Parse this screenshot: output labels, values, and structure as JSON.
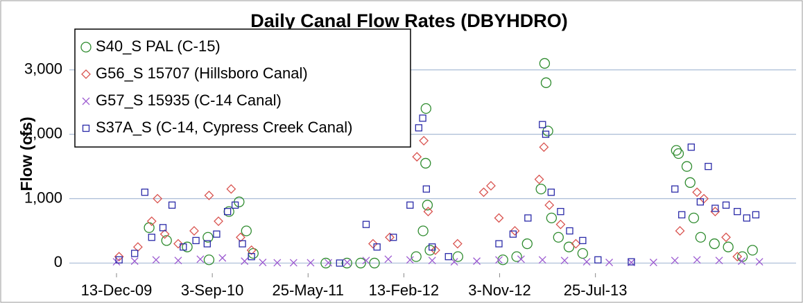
{
  "chart_data": {
    "type": "scatter",
    "title": "Daily Canal Flow Rates (DBYHDRO)",
    "y_label": "Flow (cfs)",
    "xlim": [
      "2009-08-05",
      "2015-01-29"
    ],
    "xticks": [
      {
        "value": "2009-12-13",
        "label": "13-Dec-09"
      },
      {
        "value": "2010-09-03",
        "label": "3-Sep-10"
      },
      {
        "value": "2011-05-25",
        "label": "25-May-11"
      },
      {
        "value": "2012-02-13",
        "label": "13-Feb-12"
      },
      {
        "value": "2012-11-03",
        "label": "3-Nov-12"
      },
      {
        "value": "2013-07-25",
        "label": "25-Jul-13"
      }
    ],
    "ylim": [
      -200,
      3600
    ],
    "yticks": [
      0,
      {
        "value": 1000,
        "label": "1,000"
      },
      {
        "value": 2000,
        "label": "2,000"
      },
      {
        "value": 3000,
        "label": "3,000"
      }
    ],
    "grid": true,
    "legend": "upper left",
    "series": [
      {
        "name": "S40_S PAL (C-15)",
        "color": "#2e8b2e",
        "marker": "circle",
        "x": [
          "2010-03-13",
          "2010-04-30",
          "2010-06-26",
          "2010-08-22",
          "2010-08-25",
          "2010-10-19",
          "2010-11-16",
          "2010-12-06",
          "2010-12-25",
          "2011-07-13",
          "2011-09-09",
          "2011-10-17",
          "2011-11-24",
          "2012-03-18",
          "2012-04-06",
          "2012-04-13",
          "2012-04-14",
          "2012-04-18",
          "2012-04-25",
          "2012-07-11",
          "2012-11-12",
          "2012-12-20",
          "2013-01-18",
          "2013-02-25",
          "2013-03-07",
          "2013-03-11",
          "2013-03-16",
          "2013-03-26",
          "2013-04-14",
          "2013-05-13",
          "2013-06-20",
          "2014-03-05",
          "2014-03-11",
          "2014-04-03",
          "2014-04-12",
          "2014-04-22",
          "2014-05-11",
          "2014-06-18",
          "2014-07-26",
          "2014-09-03",
          "2014-10-01"
        ],
        "values": [
          550,
          350,
          250,
          400,
          50,
          800,
          950,
          500,
          150,
          0,
          0,
          0,
          0,
          100,
          500,
          1550,
          2400,
          900,
          200,
          100,
          50,
          100,
          300,
          1150,
          3100,
          2800,
          2050,
          700,
          400,
          250,
          150,
          1750,
          1700,
          1500,
          1250,
          700,
          400,
          300,
          250,
          100,
          200
        ]
      },
      {
        "name": "G56_S 15707 (Hillsboro Canal)",
        "color": "#d9534f",
        "marker": "diamond",
        "x": [
          "2009-12-20",
          "2010-02-10",
          "2010-03-20",
          "2010-04-05",
          "2010-04-25",
          "2010-06-01",
          "2010-07-15",
          "2010-08-25",
          "2010-09-20",
          "2010-10-25",
          "2010-11-20",
          "2010-12-20",
          "2011-11-20",
          "2012-01-05",
          "2012-03-20",
          "2012-04-08",
          "2012-04-20",
          "2012-05-10",
          "2012-07-10",
          "2012-09-20",
          "2012-10-10",
          "2012-11-01",
          "2012-12-15",
          "2013-02-20",
          "2013-03-05",
          "2013-03-20",
          "2013-04-20",
          "2013-06-01",
          "2014-03-15",
          "2014-05-01",
          "2014-05-20",
          "2014-06-20",
          "2014-07-20",
          "2014-08-20"
        ],
        "values": [
          100,
          250,
          650,
          1000,
          450,
          300,
          500,
          1050,
          650,
          1150,
          400,
          200,
          300,
          400,
          1650,
          1900,
          800,
          200,
          300,
          1100,
          1200,
          700,
          500,
          1300,
          1800,
          900,
          600,
          300,
          500,
          1100,
          1000,
          800,
          400,
          100
        ]
      },
      {
        "name": "G57_S 15935 (C-14 Canal)",
        "color": "#9b59d0",
        "marker": "x",
        "x": [
          "2009-12-13",
          "2010-02-01",
          "2010-04-01",
          "2010-06-01",
          "2010-08-01",
          "2010-10-01",
          "2010-12-01",
          "2011-01-20",
          "2011-03-01",
          "2011-04-15",
          "2011-06-01",
          "2011-07-20",
          "2011-09-10",
          "2011-11-01",
          "2012-01-01",
          "2012-03-01",
          "2012-05-01",
          "2012-07-01",
          "2012-09-01",
          "2012-11-01",
          "2013-01-01",
          "2013-03-01",
          "2013-05-01",
          "2013-07-01",
          "2013-09-01",
          "2013-11-01",
          "2014-01-01",
          "2014-03-01",
          "2014-05-01",
          "2014-07-01",
          "2014-09-01",
          "2014-10-20"
        ],
        "values": [
          20,
          30,
          50,
          40,
          60,
          80,
          30,
          10,
          5,
          5,
          5,
          5,
          10,
          40,
          60,
          50,
          40,
          20,
          30,
          50,
          60,
          50,
          40,
          20,
          10,
          10,
          10,
          40,
          50,
          40,
          30,
          20
        ]
      },
      {
        "name": "S37A_S (C-14, Cypress Creek Canal)",
        "color": "#2a2aa8",
        "marker": "square",
        "x": [
          "2009-12-20",
          "2010-02-01",
          "2010-03-01",
          "2010-03-20",
          "2010-04-20",
          "2010-05-15",
          "2010-06-15",
          "2010-07-20",
          "2010-08-20",
          "2010-09-15",
          "2010-10-15",
          "2010-11-05",
          "2010-11-25",
          "2010-12-20",
          "2011-08-20",
          "2011-11-01",
          "2011-12-01",
          "2012-01-15",
          "2012-03-01",
          "2012-03-25",
          "2012-04-05",
          "2012-04-15",
          "2012-05-01",
          "2012-06-15",
          "2012-11-01",
          "2012-12-10",
          "2013-01-20",
          "2013-03-01",
          "2013-03-10",
          "2013-03-25",
          "2013-04-20",
          "2013-05-15",
          "2013-06-20",
          "2013-08-01",
          "2013-11-01",
          "2014-03-01",
          "2014-03-20",
          "2014-04-15",
          "2014-05-10",
          "2014-06-01",
          "2014-06-20",
          "2014-07-20",
          "2014-08-20",
          "2014-09-15",
          "2014-10-10"
        ],
        "values": [
          50,
          150,
          1100,
          400,
          550,
          900,
          250,
          350,
          300,
          450,
          800,
          900,
          300,
          100,
          0,
          600,
          250,
          400,
          900,
          2100,
          2250,
          1150,
          250,
          100,
          300,
          450,
          700,
          2150,
          2000,
          1100,
          800,
          500,
          350,
          50,
          20,
          1150,
          750,
          1800,
          950,
          1500,
          850,
          900,
          800,
          700,
          750
        ]
      }
    ]
  }
}
